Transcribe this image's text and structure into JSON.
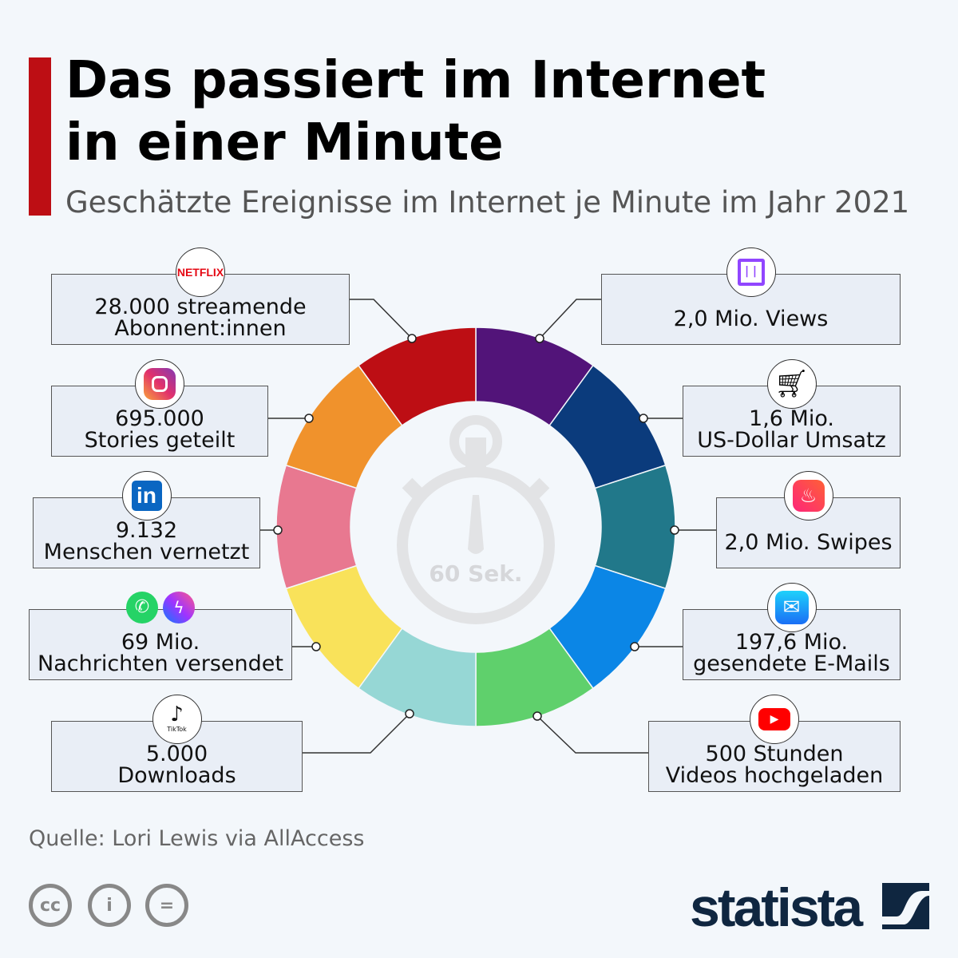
{
  "header": {
    "title_line1": "Das passiert im Internet",
    "title_line2": "in einer Minute",
    "subtitle": "Geschätzte Ereignisse im Internet je Minute im Jahr 2021"
  },
  "center": {
    "label": "60 Sek.",
    "icon": "stopwatch-icon"
  },
  "segments": [
    {
      "color": "#521479"
    },
    {
      "color": "#0b3b7c"
    },
    {
      "color": "#21788a"
    },
    {
      "color": "#0b86e6"
    },
    {
      "color": "#5fd06c"
    },
    {
      "color": "#96d7d5"
    },
    {
      "color": "#f9e25a"
    },
    {
      "color": "#e87890"
    },
    {
      "color": "#f0922c"
    },
    {
      "color": "#bd0e14"
    }
  ],
  "items": [
    {
      "service": "Netflix",
      "icon": "netflix-icon",
      "line1": "28.000 streamende",
      "line2": "Abonnent:innen"
    },
    {
      "service": "Instagram",
      "icon": "instagram-icon",
      "line1": "695.000",
      "line2": "Stories geteilt"
    },
    {
      "service": "LinkedIn",
      "icon": "linkedin-icon",
      "line1": "9.132",
      "line2": "Menschen vernetzt"
    },
    {
      "service": "WhatsApp / Messenger",
      "icon": "whatsapp-messenger-icon",
      "line1": "69 Mio.",
      "line2": "Nachrichten versendet"
    },
    {
      "service": "TikTok",
      "icon": "tiktok-icon",
      "line1": "5.000",
      "line2": "Downloads"
    },
    {
      "service": "Twitch",
      "icon": "twitch-icon",
      "line1": "2,0 Mio. Views",
      "line2": ""
    },
    {
      "service": "Shopping",
      "icon": "shopping-cart-icon",
      "line1": "1,6 Mio.",
      "line2": "US-Dollar Umsatz"
    },
    {
      "service": "Tinder",
      "icon": "tinder-icon",
      "line1": "2,0 Mio. Swipes",
      "line2": ""
    },
    {
      "service": "E-Mail",
      "icon": "mail-icon",
      "line1": "197,6 Mio.",
      "line2": "gesendete E-Mails"
    },
    {
      "service": "YouTube",
      "icon": "youtube-icon",
      "line1": "500 Stunden",
      "line2": "Videos hochgeladen"
    }
  ],
  "icon_text": {
    "netflix": "NETFLIX",
    "tiktok": "TikTok"
  },
  "footer": {
    "source": "Quelle: Lori Lewis via AllAccess",
    "brand": "statista",
    "license_icons": [
      "cc-icon",
      "attribution-icon",
      "no-derivatives-icon"
    ]
  }
}
